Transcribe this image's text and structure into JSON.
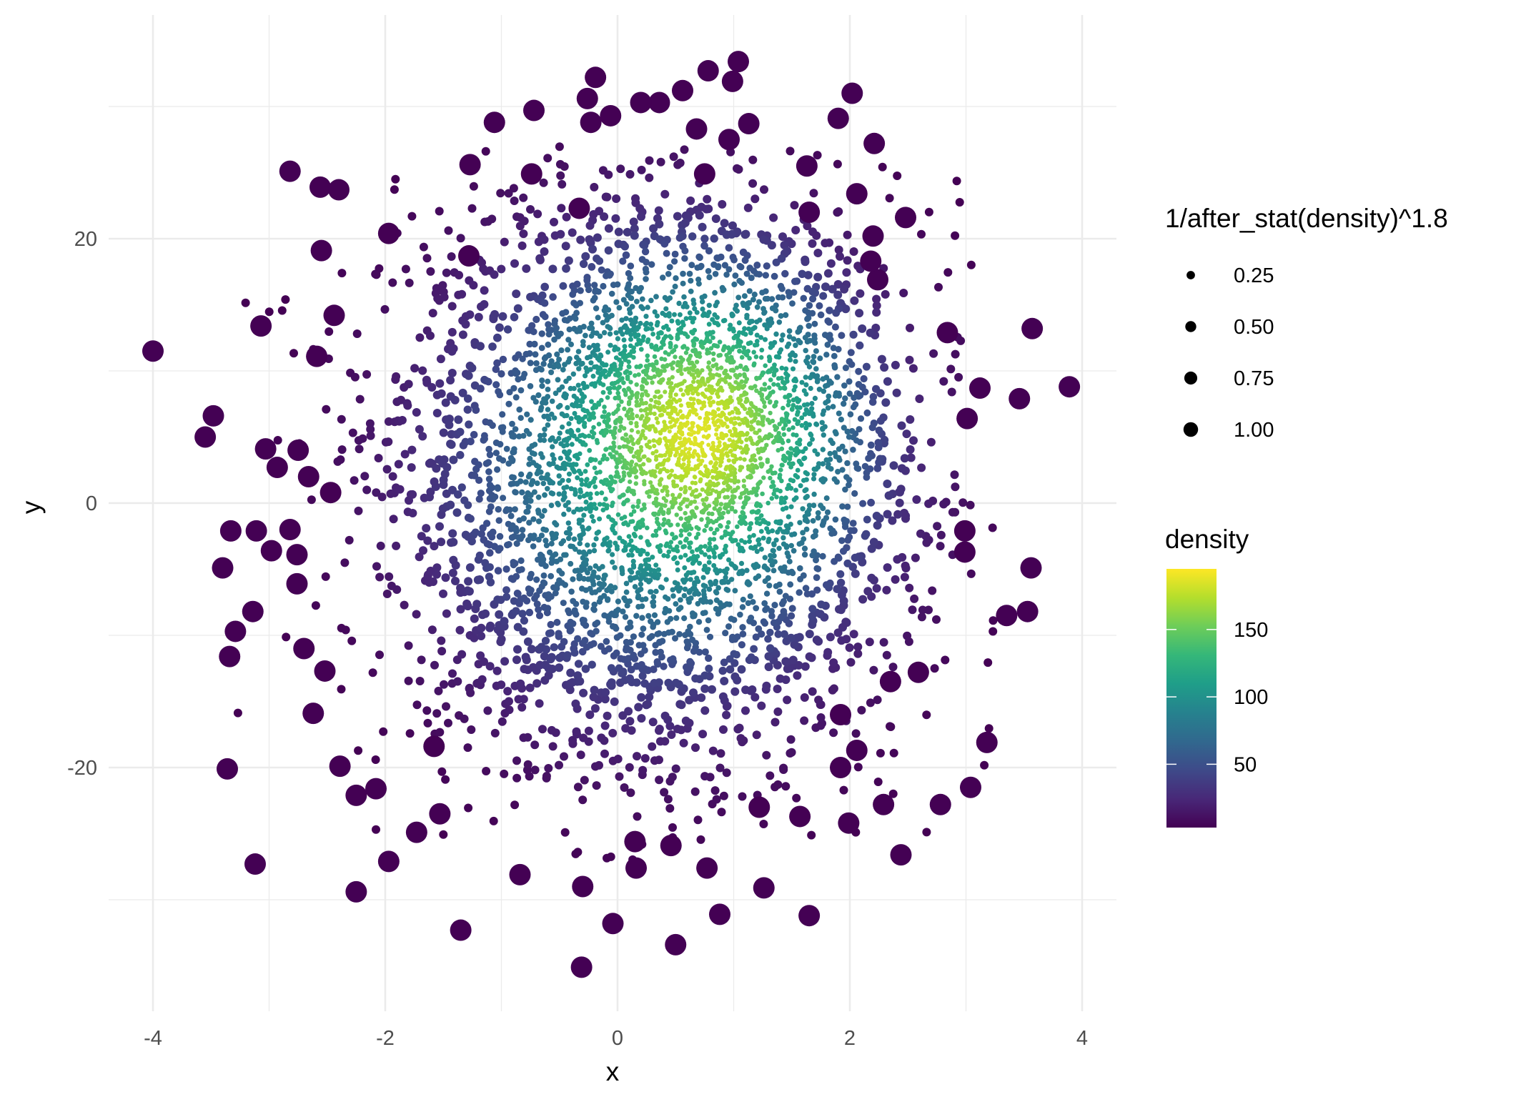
{
  "chart_data": {
    "type": "scatter",
    "xlabel": "x",
    "ylabel": "y",
    "xlim": [
      -4.2,
      4.2
    ],
    "ylim": [
      -38,
      37
    ],
    "x_ticks": [
      -4,
      -2,
      0,
      2,
      4
    ],
    "y_ticks": [
      -20,
      0,
      20
    ],
    "x_tick_labels": [
      "-4",
      "-2",
      "0",
      "2",
      "4"
    ],
    "y_tick_labels": [
      "-20",
      "0",
      "20"
    ],
    "grid": true,
    "legend_position": "right",
    "size_legend": {
      "title": "1/after_stat(density)^1.8",
      "values": [
        0.25,
        0.5,
        0.75,
        1.0
      ],
      "labels": [
        "0.25",
        "0.50",
        "0.75",
        "1.00"
      ]
    },
    "color_legend": {
      "title": "density",
      "range": [
        3,
        195
      ],
      "ticks": [
        50,
        100,
        150
      ],
      "labels": [
        "50",
        "100",
        "150"
      ],
      "palette": "viridis",
      "colors": [
        "#440154",
        "#482878",
        "#3E4A89",
        "#31688E",
        "#26828E",
        "#1F9E89",
        "#35B779",
        "#6DCD59",
        "#B4DE2C",
        "#FDE725"
      ]
    },
    "dense_cloud": {
      "center": [
        0.3,
        2
      ],
      "peak_density_at": [
        0.8,
        6
      ],
      "peak_density": 195,
      "approx_count": 5000
    },
    "outlier_points": [
      [
        -4.0,
        11.5
      ],
      [
        -3.48,
        6.6
      ],
      [
        -3.55,
        5.0
      ],
      [
        -2.82,
        25.1
      ],
      [
        -2.56,
        23.9
      ],
      [
        -2.4,
        23.7
      ],
      [
        -2.55,
        19.1
      ],
      [
        -3.07,
        13.4
      ],
      [
        -2.44,
        14.2
      ],
      [
        -2.59,
        11.1
      ],
      [
        -3.03,
        4.1
      ],
      [
        -2.93,
        2.7
      ],
      [
        -2.75,
        4.0
      ],
      [
        -2.66,
        2.0
      ],
      [
        -2.47,
        0.8
      ],
      [
        -3.33,
        -2.1
      ],
      [
        -3.11,
        -2.1
      ],
      [
        -2.82,
        -2.0
      ],
      [
        -2.98,
        -3.6
      ],
      [
        -2.76,
        -3.9
      ],
      [
        -3.4,
        -4.9
      ],
      [
        -2.76,
        -6.1
      ],
      [
        -3.14,
        -8.2
      ],
      [
        -3.29,
        -9.7
      ],
      [
        -3.34,
        -11.6
      ],
      [
        -2.7,
        -11.0
      ],
      [
        -2.52,
        -12.7
      ],
      [
        -2.62,
        -15.9
      ],
      [
        -3.36,
        -20.1
      ],
      [
        -3.12,
        -27.3
      ],
      [
        -2.39,
        -19.9
      ],
      [
        -2.25,
        -22.1
      ],
      [
        -2.08,
        -21.6
      ],
      [
        -2.25,
        -29.4
      ],
      [
        -1.97,
        -27.1
      ],
      [
        -1.73,
        -24.9
      ],
      [
        -1.53,
        -23.5
      ],
      [
        -1.58,
        -18.4
      ],
      [
        -1.35,
        -32.3
      ],
      [
        -0.84,
        -28.1
      ],
      [
        -0.31,
        -35.1
      ],
      [
        -0.3,
        -29.0
      ],
      [
        -0.04,
        -31.8
      ],
      [
        0.15,
        -25.6
      ],
      [
        0.16,
        -27.6
      ],
      [
        0.46,
        -25.9
      ],
      [
        0.5,
        -33.4
      ],
      [
        0.77,
        -27.6
      ],
      [
        0.88,
        -31.1
      ],
      [
        1.26,
        -29.1
      ],
      [
        1.22,
        -23.0
      ],
      [
        1.57,
        -23.7
      ],
      [
        1.65,
        -31.2
      ],
      [
        1.92,
        -20.0
      ],
      [
        1.99,
        -24.2
      ],
      [
        2.06,
        -18.7
      ],
      [
        1.92,
        -16.0
      ],
      [
        2.29,
        -22.8
      ],
      [
        2.44,
        -26.6
      ],
      [
        2.35,
        -13.5
      ],
      [
        2.59,
        -12.8
      ],
      [
        2.78,
        -22.8
      ],
      [
        3.04,
        -21.5
      ],
      [
        3.18,
        -18.1
      ],
      [
        2.99,
        -2.1
      ],
      [
        2.99,
        -3.7
      ],
      [
        3.35,
        -8.5
      ],
      [
        3.53,
        -8.2
      ],
      [
        3.56,
        -4.9
      ],
      [
        3.01,
        6.4
      ],
      [
        3.12,
        8.7
      ],
      [
        3.46,
        7.9
      ],
      [
        3.89,
        8.8
      ],
      [
        3.57,
        13.2
      ],
      [
        2.84,
        12.9
      ],
      [
        2.24,
        16.9
      ],
      [
        2.18,
        18.3
      ],
      [
        2.2,
        20.2
      ],
      [
        2.48,
        21.6
      ],
      [
        2.06,
        23.4
      ],
      [
        1.65,
        22.0
      ],
      [
        1.63,
        25.5
      ],
      [
        2.21,
        27.2
      ],
      [
        1.9,
        29.1
      ],
      [
        2.02,
        31.0
      ],
      [
        1.13,
        28.7
      ],
      [
        0.96,
        27.5
      ],
      [
        0.99,
        31.9
      ],
      [
        1.04,
        33.4
      ],
      [
        0.78,
        32.7
      ],
      [
        0.68,
        28.3
      ],
      [
        0.56,
        31.2
      ],
      [
        0.75,
        24.9
      ],
      [
        0.36,
        30.3
      ],
      [
        0.2,
        30.3
      ],
      [
        -0.06,
        29.3
      ],
      [
        -0.23,
        28.8
      ],
      [
        -0.26,
        30.6
      ],
      [
        -0.19,
        32.2
      ],
      [
        -0.72,
        29.7
      ],
      [
        -1.06,
        28.8
      ],
      [
        -1.27,
        25.6
      ],
      [
        -0.74,
        24.9
      ],
      [
        -0.33,
        22.3
      ],
      [
        -1.28,
        18.7
      ],
      [
        -1.97,
        20.4
      ]
    ]
  }
}
